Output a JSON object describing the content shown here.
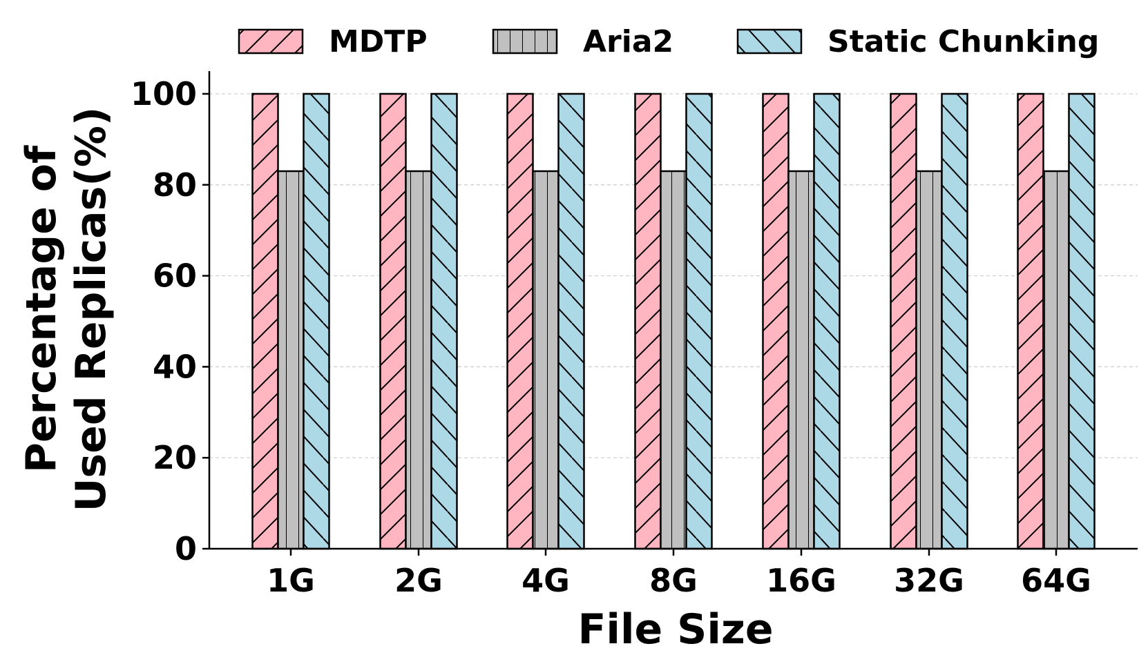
{
  "chart_data": {
    "type": "bar",
    "categories": [
      "1G",
      "2G",
      "4G",
      "8G",
      "16G",
      "32G",
      "64G"
    ],
    "series": [
      {
        "name": "MDTP",
        "values": [
          100,
          100,
          100,
          100,
          100,
          100,
          100
        ],
        "color": "#ffb6c1",
        "hatch": "forward-diagonal"
      },
      {
        "name": "Aria2",
        "values": [
          83,
          83,
          83,
          83,
          83,
          83,
          83
        ],
        "color": "#c0c0c0",
        "hatch": "vertical"
      },
      {
        "name": "Static Chunking",
        "values": [
          100,
          100,
          100,
          100,
          100,
          100,
          100
        ],
        "color": "#add8e6",
        "hatch": "back-diagonal"
      }
    ],
    "xlabel": "File Size",
    "ylabel_lines": [
      "Percentage of",
      "Used Replicas(%)"
    ],
    "ylim": [
      0,
      105
    ],
    "yticks": [
      0,
      20,
      40,
      60,
      80,
      100
    ],
    "grid": "horizontal dashed",
    "legend": "top"
  }
}
